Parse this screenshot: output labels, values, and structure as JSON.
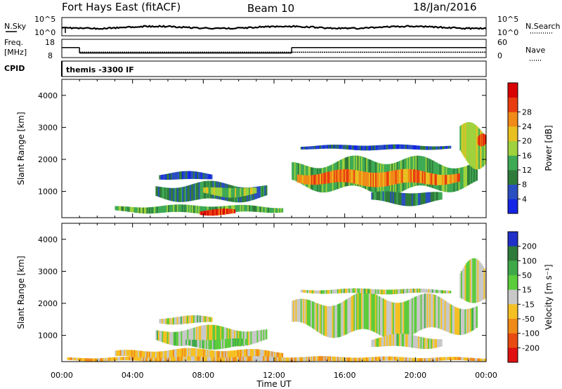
{
  "header": {
    "radar": "Fort Hays East (fitACF)",
    "beam": "Beam 10",
    "date": "18/Jan/2016"
  },
  "noise_panel": {
    "left_label": "N.Sky",
    "right_label": "N.Search",
    "left_ticks": [
      "10^5",
      "10^0"
    ],
    "right_ticks": [
      "10^5",
      "10^0"
    ]
  },
  "freq_panel": {
    "left_label_1": "Freq.",
    "left_label_2": "[MHz]",
    "right_label": "Nave",
    "left_ticks": [
      "18",
      "8"
    ],
    "right_ticks": [
      "60",
      "0"
    ],
    "freq_mhz_segments": [
      {
        "start_hr": 0.0,
        "end_hr": 1.0,
        "value": 13.5
      },
      {
        "start_hr": 1.0,
        "end_hr": 13.0,
        "value": 10.5
      },
      {
        "start_hr": 13.0,
        "end_hr": 24.0,
        "value": 13.5
      }
    ],
    "nave_level": 20
  },
  "cpid_panel": {
    "label": "CPID",
    "text": "themis -3300 IF"
  },
  "chart_data": [
    {
      "type": "heatmap",
      "name": "power",
      "ylabel": "Slant Range [km]",
      "yticks": [
        "1000",
        "2000",
        "3000",
        "4000"
      ],
      "ylim": [
        180,
        4500
      ],
      "xlim": [
        0,
        24
      ],
      "colorbar": {
        "label": "Power [dB]",
        "ticks": [
          "4",
          "8",
          "12",
          "16",
          "20",
          "24",
          "28"
        ],
        "colors": [
          "#1424e6",
          "#2a4fc0",
          "#2f7b3a",
          "#3faa55",
          "#9fd23c",
          "#e8c020",
          "#f08a18",
          "#e83c10",
          "#d80000"
        ]
      },
      "blobs": [
        {
          "t0": 5.3,
          "t1": 11.6,
          "r0": 700,
          "r1": 1250,
          "level": 2
        },
        {
          "t0": 8.0,
          "t1": 11.0,
          "r0": 850,
          "r1": 1150,
          "level": 4
        },
        {
          "t0": 5.5,
          "t1": 8.5,
          "r0": 1350,
          "r1": 1600,
          "level": 1
        },
        {
          "t0": 3.0,
          "t1": 12.5,
          "r0": 320,
          "r1": 560,
          "level": 3
        },
        {
          "t0": 7.8,
          "t1": 9.8,
          "r0": 250,
          "r1": 450,
          "level": 7
        },
        {
          "t0": 13.0,
          "t1": 23.5,
          "r0": 1000,
          "r1": 2000,
          "level": 3
        },
        {
          "t0": 13.3,
          "t1": 22.5,
          "r0": 1200,
          "r1": 1650,
          "level": 6
        },
        {
          "t0": 13.5,
          "t1": 22.0,
          "r0": 2300,
          "r1": 2450,
          "level": 1
        },
        {
          "t0": 22.5,
          "t1": 24.0,
          "r0": 1800,
          "r1": 3200,
          "level": 4
        },
        {
          "t0": 17.5,
          "t1": 21.5,
          "r0": 600,
          "r1": 1000,
          "level": 2
        },
        {
          "t0": 23.5,
          "t1": 24.0,
          "r0": 2400,
          "r1": 2800,
          "level": 7
        }
      ]
    },
    {
      "type": "heatmap",
      "name": "velocity",
      "ylabel": "Slant Range [km]",
      "yticks": [
        "1000",
        "2000",
        "3000",
        "4000"
      ],
      "ylim": [
        180,
        4500
      ],
      "xlim": [
        0,
        24
      ],
      "xticks": [
        "00:00",
        "04:00",
        "08:00",
        "12:00",
        "16:00",
        "20:00",
        "00:00"
      ],
      "xlabel": "Time UT",
      "colorbar": {
        "label": "Velocity [m s⁻¹]",
        "ticks": [
          "200",
          "100",
          "50",
          "15",
          "-15",
          "-50",
          "-100",
          "-200"
        ],
        "colors": [
          "#2030c8",
          "#2e7a3a",
          "#3fa94a",
          "#5ccc3c",
          "#c8c8c8",
          "#f5c023",
          "#f08a18",
          "#e84b12",
          "#e01010"
        ]
      },
      "blobs": [
        {
          "t0": 5.3,
          "t1": 11.6,
          "r0": 700,
          "r1": 1250,
          "level": 4
        },
        {
          "t0": 5.5,
          "t1": 8.5,
          "r0": 1350,
          "r1": 1600,
          "level": 4
        },
        {
          "t0": 3.0,
          "t1": 12.5,
          "r0": 250,
          "r1": 560,
          "level": 5
        },
        {
          "t0": 7.0,
          "t1": 10.5,
          "r0": 600,
          "r1": 900,
          "level": 3
        },
        {
          "t0": 13.0,
          "t1": 23.5,
          "r0": 1000,
          "r1": 2200,
          "level": 4
        },
        {
          "t0": 13.5,
          "t1": 22.0,
          "r0": 2300,
          "r1": 2450,
          "level": 4
        },
        {
          "t0": 22.5,
          "t1": 24.0,
          "r0": 1800,
          "r1": 3200,
          "level": 4
        },
        {
          "t0": 17.5,
          "t1": 21.5,
          "r0": 600,
          "r1": 1000,
          "level": 4
        },
        {
          "t0": 0.3,
          "t1": 24.0,
          "r0": 180,
          "r1": 330,
          "level": 5
        }
      ]
    }
  ]
}
